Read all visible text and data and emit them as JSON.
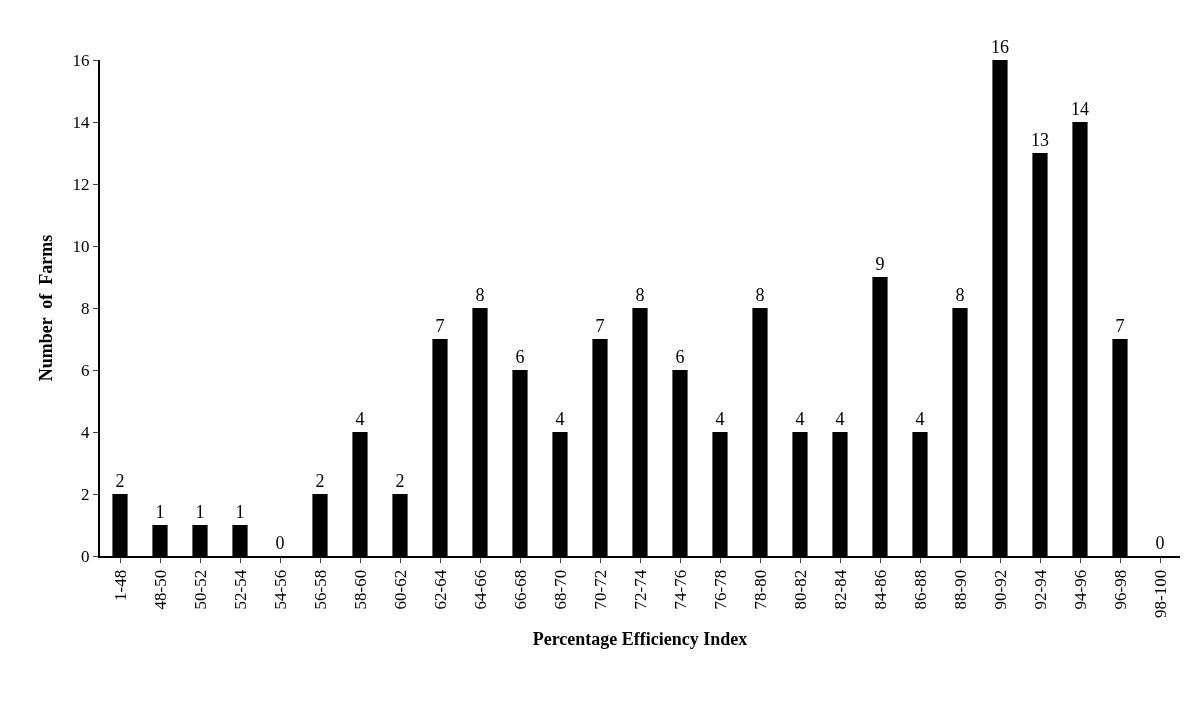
{
  "chart_data": {
    "type": "bar",
    "xlabel": "Percentage Efficiency Index",
    "ylabel": "Number  of  Farms",
    "categories": [
      "1-48",
      "48-50",
      "50-52",
      "52-54",
      "54-56",
      "56-58",
      "58-60",
      "60-62",
      "62-64",
      "64-66",
      "66-68",
      "68-70",
      "70-72",
      "72-74",
      "74-76",
      "76-78",
      "78-80",
      "80-82",
      "82-84",
      "84-86",
      "86-88",
      "88-90",
      "90-92",
      "92-94",
      "94-96",
      "96-98",
      "98-100"
    ],
    "values": [
      2,
      1,
      1,
      1,
      0,
      2,
      4,
      2,
      7,
      8,
      6,
      4,
      7,
      8,
      6,
      4,
      8,
      4,
      4,
      9,
      4,
      8,
      16,
      13,
      14,
      7,
      0
    ],
    "color": "#000000",
    "ylim": [
      0,
      16
    ],
    "yticks": [
      0,
      2,
      4,
      6,
      8,
      10,
      12,
      14,
      16
    ],
    "data_labels": true,
    "legend": false
  }
}
